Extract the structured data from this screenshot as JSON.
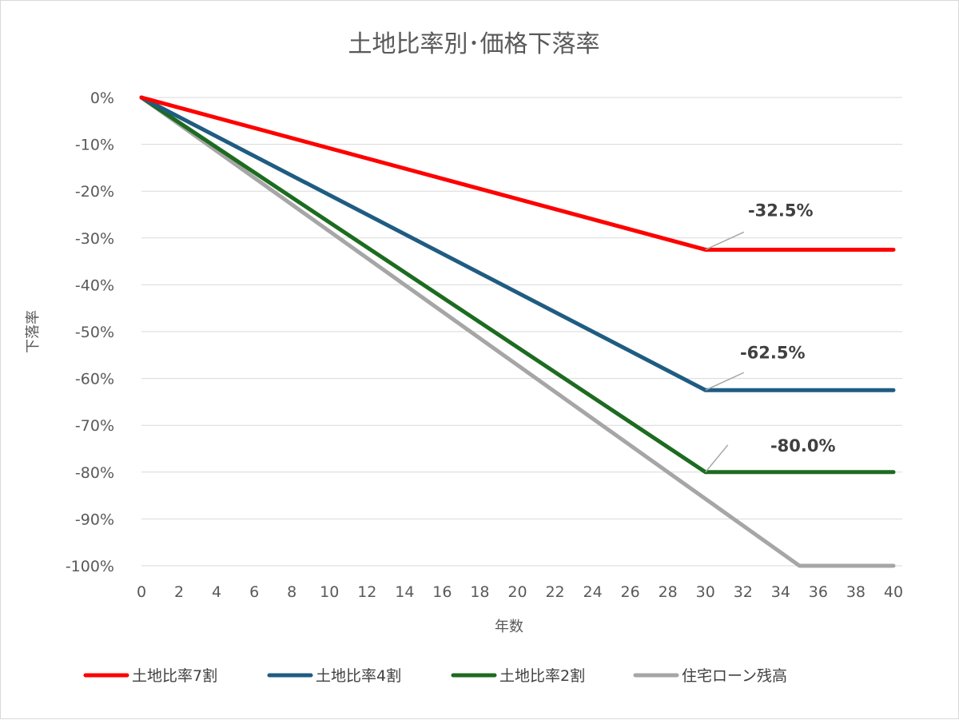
{
  "chart_data": {
    "type": "line",
    "title": "土地比率別･価格下落率",
    "xlabel": "年数",
    "ylabel": "下落率",
    "xlim": [
      0,
      40
    ],
    "ylim": [
      -100,
      0
    ],
    "x_ticks": [
      "0",
      "2",
      "4",
      "6",
      "8",
      "10",
      "12",
      "14",
      "16",
      "18",
      "20",
      "22",
      "24",
      "26",
      "28",
      "30",
      "32",
      "34",
      "36",
      "38",
      "40"
    ],
    "y_ticks": [
      "0%",
      "-10%",
      "-20%",
      "-30%",
      "-40%",
      "-50%",
      "-60%",
      "-70%",
      "-80%",
      "-90%",
      "-100%"
    ],
    "grid": true,
    "legend_position": "bottom",
    "series": [
      {
        "name": "土地比率7割",
        "color": "#ff0000",
        "x": [
          0,
          30,
          40
        ],
        "y": [
          0,
          -32.5,
          -32.5
        ]
      },
      {
        "name": "土地比率4割",
        "color": "#1f5c82",
        "x": [
          0,
          30,
          40
        ],
        "y": [
          0,
          -62.5,
          -62.5
        ]
      },
      {
        "name": "土地比率2割",
        "color": "#1d6b21",
        "x": [
          0,
          30,
          40
        ],
        "y": [
          0,
          -80.0,
          -80.0
        ]
      },
      {
        "name": "住宅ローン残高",
        "color": "#a6a6a6",
        "x": [
          0,
          35,
          40
        ],
        "y": [
          0,
          -100,
          -100
        ]
      }
    ],
    "annotations": [
      {
        "text": "-32.5%",
        "series": 0,
        "x": 30,
        "y": -32.5
      },
      {
        "text": "-62.5%",
        "series": 1,
        "x": 30,
        "y": -62.5
      },
      {
        "text": "-80.0%",
        "series": 2,
        "x": 30,
        "y": -80.0
      }
    ]
  }
}
